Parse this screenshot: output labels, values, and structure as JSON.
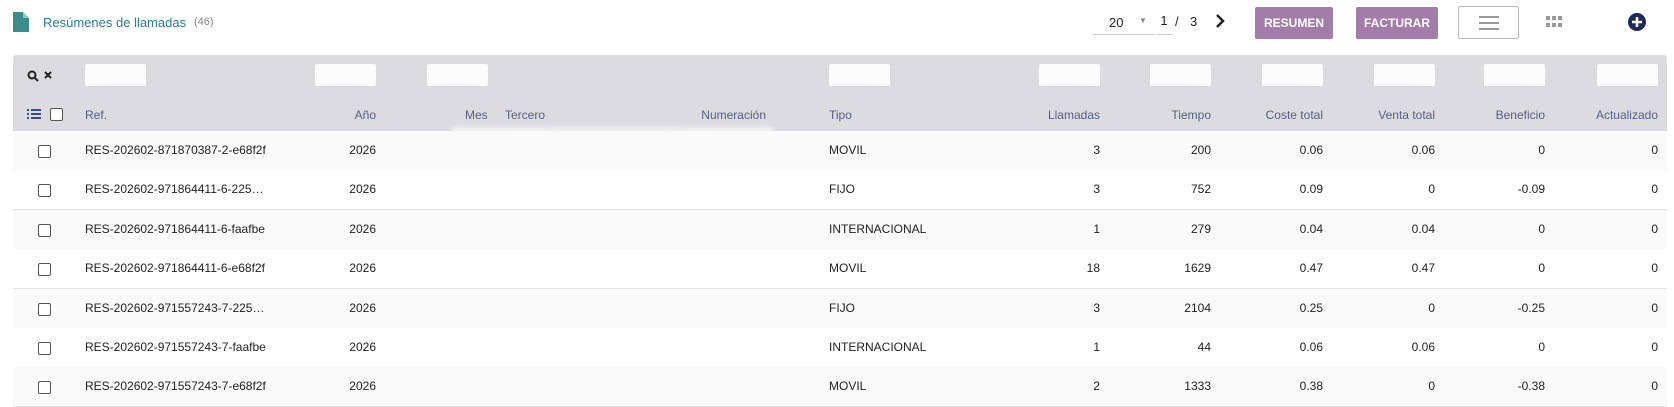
{
  "header": {
    "title": "Resúmenes de llamadas",
    "count": "(46)",
    "page_size": "20",
    "page": "1",
    "separator": "/",
    "pages": "3",
    "buttons": [
      "RESUMEN",
      "FACTURAR"
    ]
  },
  "table": {
    "columns": [
      "Ref.",
      "Año",
      "Mes",
      "Tercero",
      "Numeración",
      "Tipo",
      "Llamadas",
      "Tiempo",
      "Coste total",
      "Venta total",
      "Beneficio",
      "Actualizado"
    ],
    "rows": [
      [
        "RES-202602-871870387-2-e68f2f",
        2026,
        "MOVIL",
        3,
        200,
        0.06,
        0.06,
        0,
        0
      ],
      [
        "RES-202602-971864411-6-225…",
        2026,
        "FIJO",
        3,
        752,
        0.09,
        0,
        -0.09,
        0
      ],
      [
        "RES-202602-971864411-6-faafbe",
        2026,
        "INTERNACIONAL",
        1,
        279,
        0.04,
        0.04,
        0,
        0
      ],
      [
        "RES-202602-971864411-6-e68f2f",
        2026,
        "MOVIL",
        18,
        1629,
        0.47,
        0.47,
        0,
        0
      ],
      [
        "RES-202602-971557243-7-225…",
        2026,
        "FIJO",
        3,
        2104,
        0.25,
        0,
        -0.25,
        0
      ],
      [
        "RES-202602-971557243-7-faafbe",
        2026,
        "INTERNACIONAL",
        1,
        44,
        0.06,
        0.06,
        0,
        0
      ],
      [
        "RES-202602-971557243-7-e68f2f",
        2026,
        "MOVIL",
        2,
        1333,
        0.38,
        0,
        -0.38,
        0
      ]
    ]
  }
}
